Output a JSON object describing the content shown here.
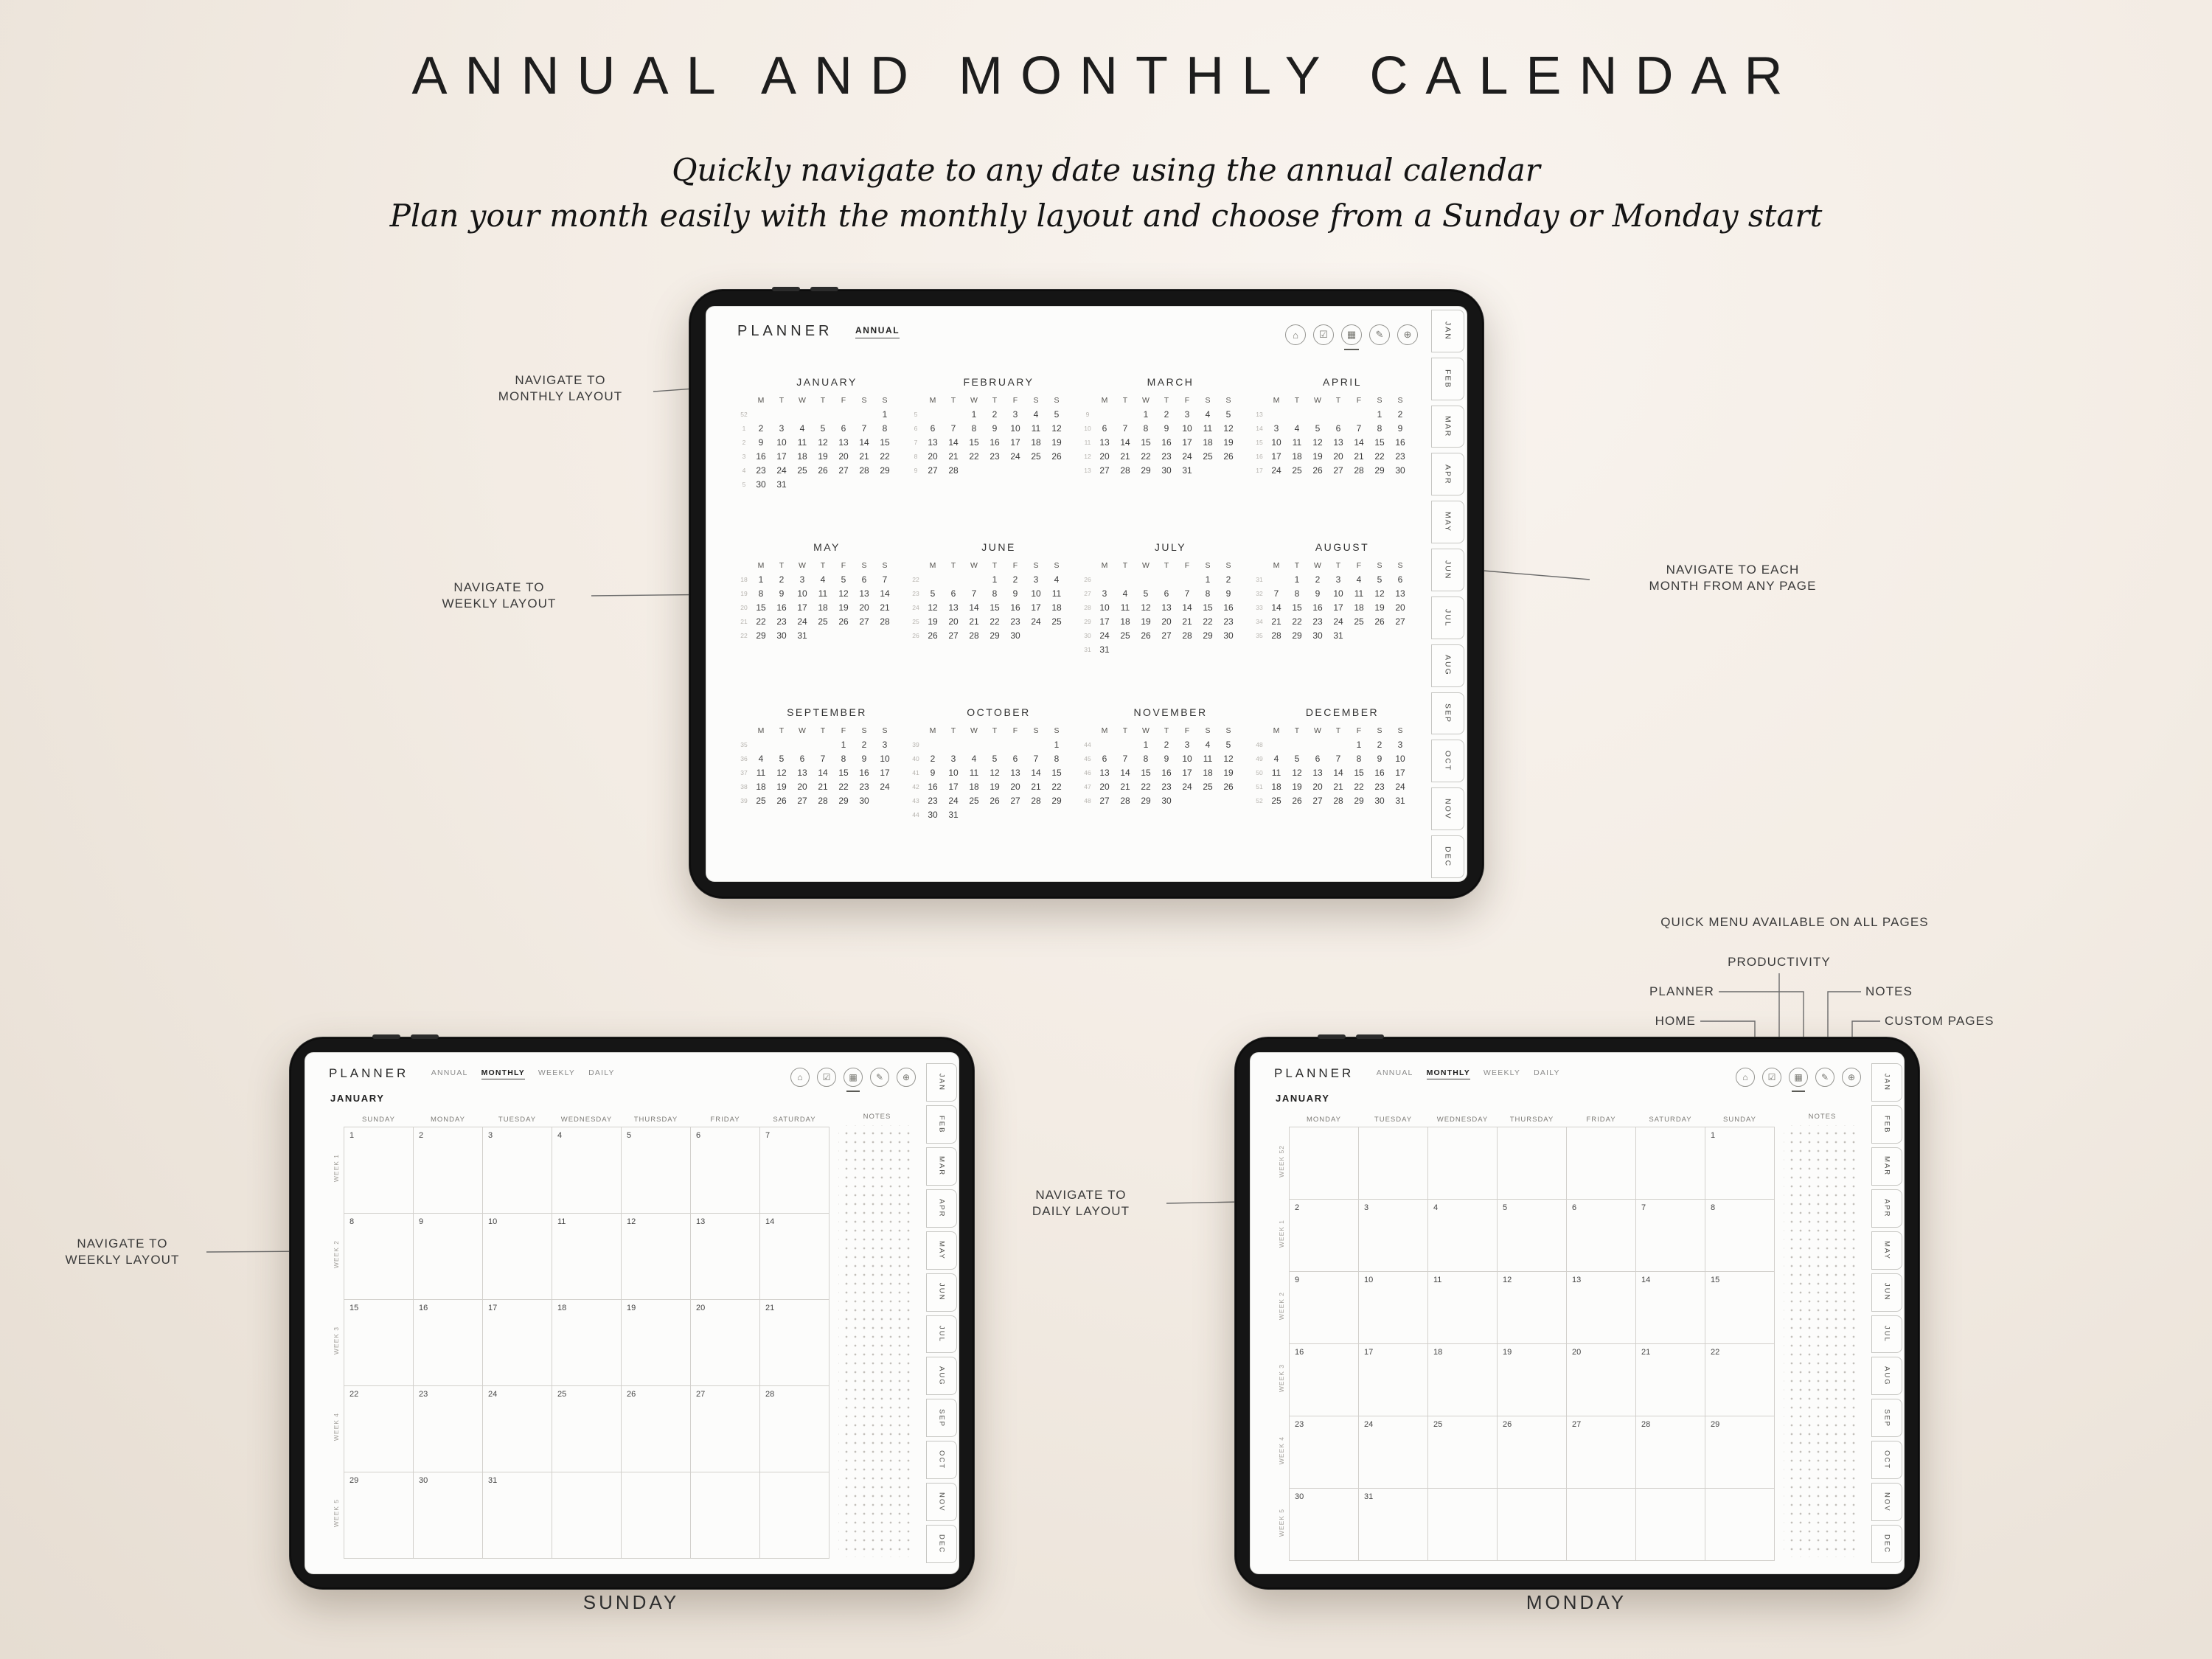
{
  "page": {
    "title": "ANNUAL AND MONTHLY CALENDAR",
    "subtitle1": "Quickly navigate to any date using the annual calendar",
    "subtitle2": "Plan your month easily with the monthly layout and choose from a Sunday or Monday start",
    "caption_sunday": "SUNDAY",
    "caption_monday": "MONDAY"
  },
  "annotations": {
    "monthly_layout": "NAVIGATE TO\nMONTHLY LAYOUT",
    "weekly_layout_top": "NAVIGATE TO\nWEEKLY LAYOUT",
    "each_month": "NAVIGATE TO EACH\nMONTH FROM ANY PAGE",
    "weekly_layout_bottom": "NAVIGATE TO\nWEEKLY LAYOUT",
    "daily_layout": "NAVIGATE TO\nDAILY LAYOUT",
    "quick_menu": "QUICK MENU AVAILABLE ON ALL PAGES",
    "quick_home": "HOME",
    "quick_productivity": "PRODUCTIVITY",
    "quick_planner": "PLANNER",
    "quick_notes": "NOTES",
    "quick_custom": "CUSTOM PAGES"
  },
  "planner": {
    "brand": "PLANNER",
    "annual_view": "ANNUAL",
    "monthly_nav": [
      "ANNUAL",
      "MONTHLY",
      "WEEKLY",
      "DAILY"
    ],
    "monthly_active": "MONTHLY",
    "side_tabs": [
      "JAN",
      "FEB",
      "MAR",
      "APR",
      "MAY",
      "JUN",
      "JUL",
      "AUG",
      "SEP",
      "OCT",
      "NOV",
      "DEC"
    ],
    "icons": [
      {
        "name": "home-icon",
        "glyph": "⌂"
      },
      {
        "name": "productivity-icon",
        "glyph": "☑"
      },
      {
        "name": "planner-icon",
        "glyph": "▦"
      },
      {
        "name": "notes-icon",
        "glyph": "✎"
      },
      {
        "name": "custom-pages-icon",
        "glyph": "⊕"
      }
    ],
    "weekday_initials": [
      "M",
      "T",
      "W",
      "T",
      "F",
      "S",
      "S"
    ]
  },
  "annual": {
    "months": [
      {
        "name": "JANUARY",
        "week_nums": [
          "52",
          "1",
          "2",
          "3",
          "4",
          "5"
        ],
        "weeks": [
          [
            "",
            "",
            "",
            "",
            "",
            "",
            "1"
          ],
          [
            "2",
            "3",
            "4",
            "5",
            "6",
            "7",
            "8"
          ],
          [
            "9",
            "10",
            "11",
            "12",
            "13",
            "14",
            "15"
          ],
          [
            "16",
            "17",
            "18",
            "19",
            "20",
            "21",
            "22"
          ],
          [
            "23",
            "24",
            "25",
            "26",
            "27",
            "28",
            "29"
          ],
          [
            "30",
            "31",
            "",
            "",
            "",
            "",
            ""
          ]
        ]
      },
      {
        "name": "FEBRUARY",
        "week_nums": [
          "5",
          "6",
          "7",
          "8",
          "9"
        ],
        "weeks": [
          [
            "",
            "",
            "1",
            "2",
            "3",
            "4",
            "5"
          ],
          [
            "6",
            "7",
            "8",
            "9",
            "10",
            "11",
            "12"
          ],
          [
            "13",
            "14",
            "15",
            "16",
            "17",
            "18",
            "19"
          ],
          [
            "20",
            "21",
            "22",
            "23",
            "24",
            "25",
            "26"
          ],
          [
            "27",
            "28",
            "",
            "",
            "",
            "",
            ""
          ]
        ]
      },
      {
        "name": "MARCH",
        "week_nums": [
          "9",
          "10",
          "11",
          "12",
          "13"
        ],
        "weeks": [
          [
            "",
            "",
            "1",
            "2",
            "3",
            "4",
            "5"
          ],
          [
            "6",
            "7",
            "8",
            "9",
            "10",
            "11",
            "12"
          ],
          [
            "13",
            "14",
            "15",
            "16",
            "17",
            "18",
            "19"
          ],
          [
            "20",
            "21",
            "22",
            "23",
            "24",
            "25",
            "26"
          ],
          [
            "27",
            "28",
            "29",
            "30",
            "31",
            "",
            ""
          ]
        ]
      },
      {
        "name": "APRIL",
        "week_nums": [
          "13",
          "14",
          "15",
          "16",
          "17"
        ],
        "weeks": [
          [
            "",
            "",
            "",
            "",
            "",
            "1",
            "2"
          ],
          [
            "3",
            "4",
            "5",
            "6",
            "7",
            "8",
            "9"
          ],
          [
            "10",
            "11",
            "12",
            "13",
            "14",
            "15",
            "16"
          ],
          [
            "17",
            "18",
            "19",
            "20",
            "21",
            "22",
            "23"
          ],
          [
            "24",
            "25",
            "26",
            "27",
            "28",
            "29",
            "30"
          ]
        ]
      },
      {
        "name": "MAY",
        "week_nums": [
          "18",
          "19",
          "20",
          "21",
          "22"
        ],
        "weeks": [
          [
            "1",
            "2",
            "3",
            "4",
            "5",
            "6",
            "7"
          ],
          [
            "8",
            "9",
            "10",
            "11",
            "12",
            "13",
            "14"
          ],
          [
            "15",
            "16",
            "17",
            "18",
            "19",
            "20",
            "21"
          ],
          [
            "22",
            "23",
            "24",
            "25",
            "26",
            "27",
            "28"
          ],
          [
            "29",
            "30",
            "31",
            "",
            "",
            "",
            ""
          ]
        ]
      },
      {
        "name": "JUNE",
        "week_nums": [
          "22",
          "23",
          "24",
          "25",
          "26"
        ],
        "weeks": [
          [
            "",
            "",
            "",
            "1",
            "2",
            "3",
            "4"
          ],
          [
            "5",
            "6",
            "7",
            "8",
            "9",
            "10",
            "11"
          ],
          [
            "12",
            "13",
            "14",
            "15",
            "16",
            "17",
            "18"
          ],
          [
            "19",
            "20",
            "21",
            "22",
            "23",
            "24",
            "25"
          ],
          [
            "26",
            "27",
            "28",
            "29",
            "30",
            "",
            ""
          ]
        ]
      },
      {
        "name": "JULY",
        "week_nums": [
          "26",
          "27",
          "28",
          "29",
          "30",
          "31"
        ],
        "weeks": [
          [
            "",
            "",
            "",
            "",
            "",
            "1",
            "2"
          ],
          [
            "3",
            "4",
            "5",
            "6",
            "7",
            "8",
            "9"
          ],
          [
            "10",
            "11",
            "12",
            "13",
            "14",
            "15",
            "16"
          ],
          [
            "17",
            "18",
            "19",
            "20",
            "21",
            "22",
            "23"
          ],
          [
            "24",
            "25",
            "26",
            "27",
            "28",
            "29",
            "30"
          ],
          [
            "31",
            "",
            "",
            "",
            "",
            "",
            ""
          ]
        ]
      },
      {
        "name": "AUGUST",
        "week_nums": [
          "31",
          "32",
          "33",
          "34",
          "35"
        ],
        "weeks": [
          [
            "",
            "1",
            "2",
            "3",
            "4",
            "5",
            "6"
          ],
          [
            "7",
            "8",
            "9",
            "10",
            "11",
            "12",
            "13"
          ],
          [
            "14",
            "15",
            "16",
            "17",
            "18",
            "19",
            "20"
          ],
          [
            "21",
            "22",
            "23",
            "24",
            "25",
            "26",
            "27"
          ],
          [
            "28",
            "29",
            "30",
            "31",
            "",
            "",
            ""
          ]
        ]
      },
      {
        "name": "SEPTEMBER",
        "week_nums": [
          "35",
          "36",
          "37",
          "38",
          "39"
        ],
        "weeks": [
          [
            "",
            "",
            "",
            "",
            "1",
            "2",
            "3"
          ],
          [
            "4",
            "5",
            "6",
            "7",
            "8",
            "9",
            "10"
          ],
          [
            "11",
            "12",
            "13",
            "14",
            "15",
            "16",
            "17"
          ],
          [
            "18",
            "19",
            "20",
            "21",
            "22",
            "23",
            "24"
          ],
          [
            "25",
            "26",
            "27",
            "28",
            "29",
            "30",
            ""
          ]
        ]
      },
      {
        "name": "OCTOBER",
        "week_nums": [
          "39",
          "40",
          "41",
          "42",
          "43",
          "44"
        ],
        "weeks": [
          [
            "",
            "",
            "",
            "",
            "",
            "",
            "1"
          ],
          [
            "2",
            "3",
            "4",
            "5",
            "6",
            "7",
            "8"
          ],
          [
            "9",
            "10",
            "11",
            "12",
            "13",
            "14",
            "15"
          ],
          [
            "16",
            "17",
            "18",
            "19",
            "20",
            "21",
            "22"
          ],
          [
            "23",
            "24",
            "25",
            "26",
            "27",
            "28",
            "29"
          ],
          [
            "30",
            "31",
            "",
            "",
            "",
            "",
            ""
          ]
        ]
      },
      {
        "name": "NOVEMBER",
        "week_nums": [
          "44",
          "45",
          "46",
          "47",
          "48"
        ],
        "weeks": [
          [
            "",
            "",
            "1",
            "2",
            "3",
            "4",
            "5"
          ],
          [
            "6",
            "7",
            "8",
            "9",
            "10",
            "11",
            "12"
          ],
          [
            "13",
            "14",
            "15",
            "16",
            "17",
            "18",
            "19"
          ],
          [
            "20",
            "21",
            "22",
            "23",
            "24",
            "25",
            "26"
          ],
          [
            "27",
            "28",
            "29",
            "30",
            "",
            "",
            ""
          ]
        ]
      },
      {
        "name": "DECEMBER",
        "week_nums": [
          "48",
          "49",
          "50",
          "51",
          "52"
        ],
        "weeks": [
          [
            "",
            "",
            "",
            "",
            "1",
            "2",
            "3"
          ],
          [
            "4",
            "5",
            "6",
            "7",
            "8",
            "9",
            "10"
          ],
          [
            "11",
            "12",
            "13",
            "14",
            "15",
            "16",
            "17"
          ],
          [
            "18",
            "19",
            "20",
            "21",
            "22",
            "23",
            "24"
          ],
          [
            "25",
            "26",
            "27",
            "28",
            "29",
            "30",
            "31"
          ]
        ]
      }
    ]
  },
  "monthly_sunday": {
    "month": "JANUARY",
    "day_headers": [
      "SUNDAY",
      "MONDAY",
      "TUESDAY",
      "WEDNESDAY",
      "THURSDAY",
      "FRIDAY",
      "SATURDAY"
    ],
    "notes_header": "NOTES",
    "weeks": [
      {
        "label": "WEEK 1",
        "days": [
          "1",
          "2",
          "3",
          "4",
          "5",
          "6",
          "7"
        ]
      },
      {
        "label": "WEEK 2",
        "days": [
          "8",
          "9",
          "10",
          "11",
          "12",
          "13",
          "14"
        ]
      },
      {
        "label": "WEEK 3",
        "days": [
          "15",
          "16",
          "17",
          "18",
          "19",
          "20",
          "21"
        ]
      },
      {
        "label": "WEEK 4",
        "days": [
          "22",
          "23",
          "24",
          "25",
          "26",
          "27",
          "28"
        ]
      },
      {
        "label": "WEEK 5",
        "days": [
          "29",
          "30",
          "31",
          "",
          "",
          "",
          ""
        ]
      }
    ]
  },
  "monthly_monday": {
    "month": "JANUARY",
    "day_headers": [
      "MONDAY",
      "TUESDAY",
      "WEDNESDAY",
      "THURSDAY",
      "FRIDAY",
      "SATURDAY",
      "SUNDAY"
    ],
    "notes_header": "NOTES",
    "weeks": [
      {
        "label": "WEEK 52",
        "days": [
          "",
          "",
          "",
          "",
          "",
          "",
          "1"
        ]
      },
      {
        "label": "WEEK 1",
        "days": [
          "2",
          "3",
          "4",
          "5",
          "6",
          "7",
          "8"
        ]
      },
      {
        "label": "WEEK 2",
        "days": [
          "9",
          "10",
          "11",
          "12",
          "13",
          "14",
          "15"
        ]
      },
      {
        "label": "WEEK 3",
        "days": [
          "16",
          "17",
          "18",
          "19",
          "20",
          "21",
          "22"
        ]
      },
      {
        "label": "WEEK 4",
        "days": [
          "23",
          "24",
          "25",
          "26",
          "27",
          "28",
          "29"
        ]
      },
      {
        "label": "WEEK 5",
        "days": [
          "30",
          "31",
          "",
          "",
          "",
          "",
          ""
        ]
      }
    ]
  }
}
